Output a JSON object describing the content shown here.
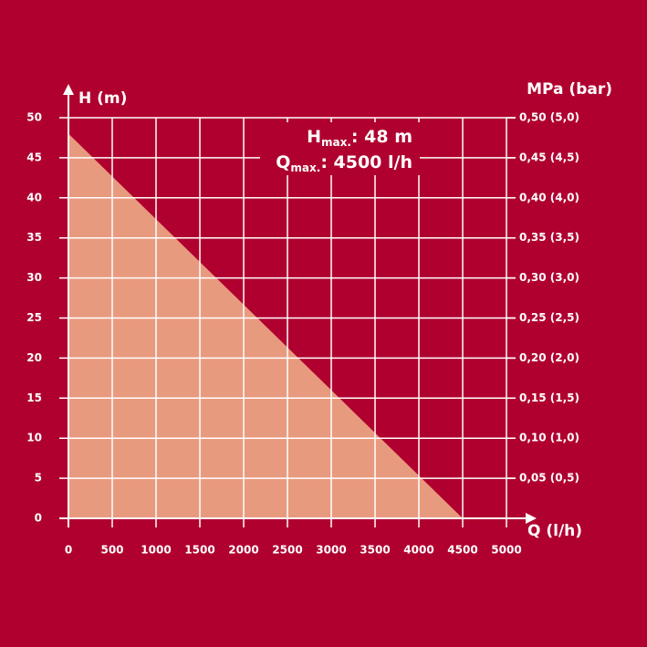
{
  "chart_data": {
    "type": "area",
    "y_label": "H (m)",
    "y2_label": "MPa (bar)",
    "x_label": "Q (l/h)",
    "annotations": [
      {
        "main": "H",
        "sub": "max.",
        "text": ": 48 m"
      },
      {
        "main": "Q",
        "sub": "max.",
        "text": ": 4500 l/h"
      }
    ],
    "x": [
      0,
      4500
    ],
    "values": [
      48,
      0
    ],
    "color": "#e89a7f",
    "background": "#b0002f",
    "xlim": [
      0,
      5000
    ],
    "xticks": [
      0,
      500,
      1000,
      1500,
      2000,
      2500,
      3000,
      3500,
      4000,
      4500,
      5000
    ],
    "ylim": [
      0,
      50
    ],
    "yticks": [
      0,
      5,
      10,
      15,
      20,
      25,
      30,
      35,
      40,
      45,
      50
    ],
    "y2lim": [
      0,
      0.5
    ],
    "y2ticks": [
      {
        "value": 0.05,
        "label": "0,05 (0,5)"
      },
      {
        "value": 0.1,
        "label": "0,10 (1,0)"
      },
      {
        "value": 0.15,
        "label": "0,15 (1,5)"
      },
      {
        "value": 0.2,
        "label": "0,20 (2,0)"
      },
      {
        "value": 0.25,
        "label": "0,25 (2,5)"
      },
      {
        "value": 0.3,
        "label": "0,30 (3,0)"
      },
      {
        "value": 0.35,
        "label": "0,35 (3,5)"
      },
      {
        "value": 0.4,
        "label": "0,40 (4,0)"
      },
      {
        "value": 0.45,
        "label": "0,45 (4,5)"
      },
      {
        "value": 0.5,
        "label": "0,50 (5,0)"
      }
    ],
    "grid": true
  }
}
